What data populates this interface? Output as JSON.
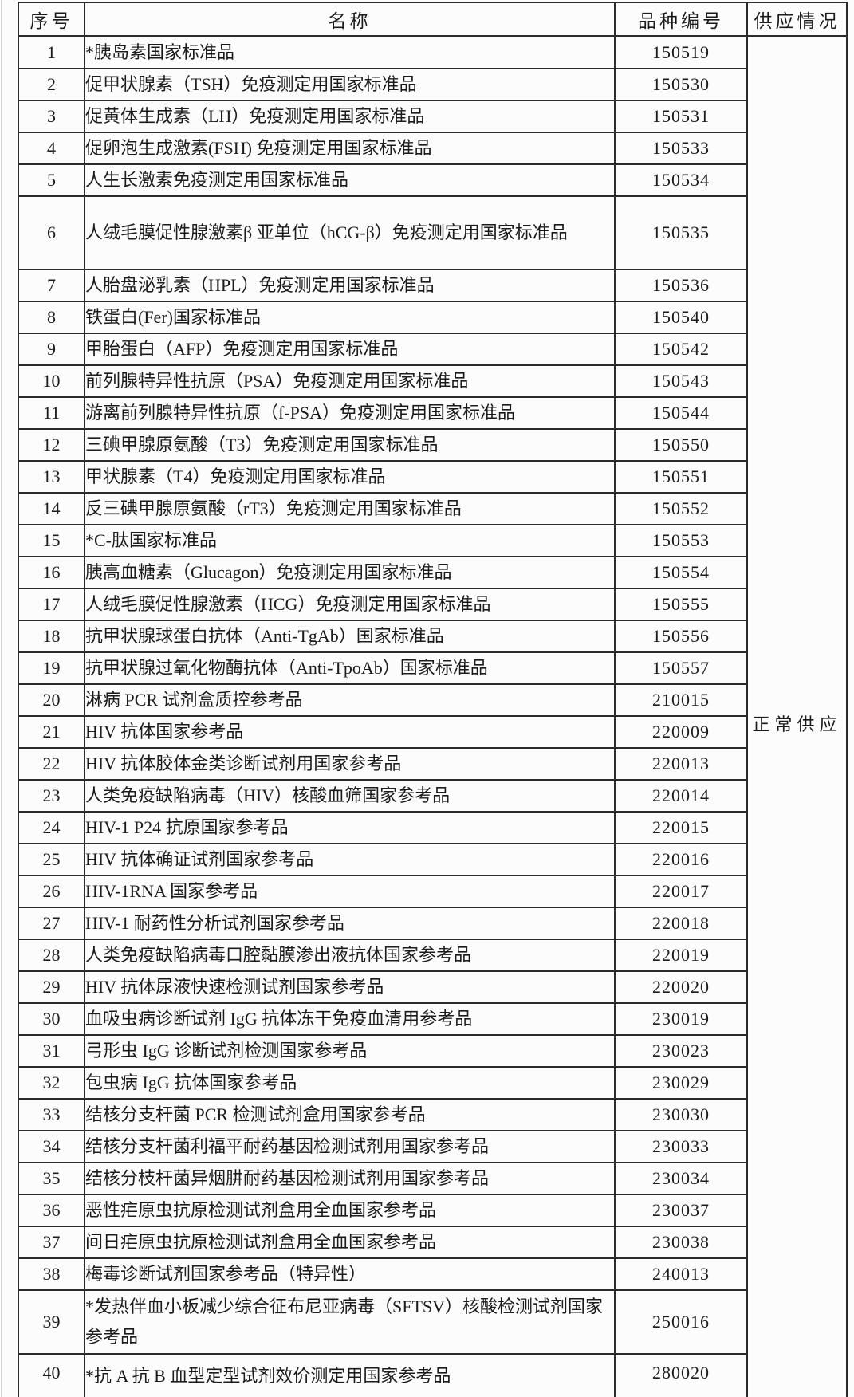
{
  "table": {
    "headers": {
      "index": "序号",
      "name": "名称",
      "code": "品种编号",
      "supply": "供应情况"
    },
    "supply_status": "正常供应",
    "rows": [
      {
        "index": "1",
        "name": "*胰岛素国家标准品",
        "code": "150519"
      },
      {
        "index": "2",
        "name": "促甲状腺素（TSH）免疫测定用国家标准品",
        "code": "150530"
      },
      {
        "index": "3",
        "name": "促黄体生成素（LH）免疫测定用国家标准品",
        "code": "150531"
      },
      {
        "index": "4",
        "name": "促卵泡生成激素(FSH) 免疫测定用国家标准品",
        "code": "150533"
      },
      {
        "index": "5",
        "name": "人生长激素免疫测定用国家标准品",
        "code": "150534"
      },
      {
        "index": "6",
        "name": "人绒毛膜促性腺激素β 亚单位（hCG-β）免疫测定用国家标准品",
        "code": "150535"
      },
      {
        "index": "7",
        "name": "人胎盘泌乳素（HPL）免疫测定用国家标准品",
        "code": "150536"
      },
      {
        "index": "8",
        "name": "铁蛋白(Fer)国家标准品",
        "code": "150540"
      },
      {
        "index": "9",
        "name": "甲胎蛋白（AFP）免疫测定用国家标准品",
        "code": "150542"
      },
      {
        "index": "10",
        "name": "前列腺特异性抗原（PSA）免疫测定用国家标准品",
        "code": "150543"
      },
      {
        "index": "11",
        "name": "游离前列腺特异性抗原（f-PSA）免疫测定用国家标准品",
        "code": "150544"
      },
      {
        "index": "12",
        "name": "三碘甲腺原氨酸（T3）免疫测定用国家标准品",
        "code": "150550"
      },
      {
        "index": "13",
        "name": "甲状腺素（T4）免疫测定用国家标准品",
        "code": "150551"
      },
      {
        "index": "14",
        "name": "反三碘甲腺原氨酸（rT3）免疫测定用国家标准品",
        "code": "150552"
      },
      {
        "index": "15",
        "name": "*C-肽国家标准品",
        "code": "150553"
      },
      {
        "index": "16",
        "name": "胰高血糖素（Glucagon）免疫测定用国家标准品",
        "code": "150554"
      },
      {
        "index": "17",
        "name": "人绒毛膜促性腺激素（HCG）免疫测定用国家标准品",
        "code": "150555"
      },
      {
        "index": "18",
        "name": "抗甲状腺球蛋白抗体（Anti-TgAb）国家标准品",
        "code": "150556"
      },
      {
        "index": "19",
        "name": "抗甲状腺过氧化物酶抗体（Anti-TpoAb）国家标准品",
        "code": "150557"
      },
      {
        "index": "20",
        "name": "淋病 PCR 试剂盒质控参考品",
        "code": "210015"
      },
      {
        "index": "21",
        "name": "HIV 抗体国家参考品",
        "code": "220009"
      },
      {
        "index": "22",
        "name": "HIV 抗体胶体金类诊断试剂用国家参考品",
        "code": "220013"
      },
      {
        "index": "23",
        "name": "人类免疫缺陷病毒（HIV）核酸血筛国家参考品",
        "code": "220014"
      },
      {
        "index": "24",
        "name": "HIV-1 P24 抗原国家参考品",
        "code": "220015"
      },
      {
        "index": "25",
        "name": "HIV 抗体确证试剂国家参考品",
        "code": "220016"
      },
      {
        "index": "26",
        "name": "HIV-1RNA 国家参考品",
        "code": "220017"
      },
      {
        "index": "27",
        "name": "HIV-1 耐药性分析试剂国家参考品",
        "code": "220018"
      },
      {
        "index": "28",
        "name": "人类免疫缺陷病毒口腔黏膜渗出液抗体国家参考品",
        "code": "220019"
      },
      {
        "index": "29",
        "name": "HIV 抗体尿液快速检测试剂国家参考品",
        "code": "220020"
      },
      {
        "index": "30",
        "name": "血吸虫病诊断试剂 IgG 抗体冻干免疫血清用参考品",
        "code": "230019"
      },
      {
        "index": "31",
        "name": "弓形虫 IgG 诊断试剂检测国家参考品",
        "code": "230023"
      },
      {
        "index": "32",
        "name": "包虫病 IgG 抗体国家参考品",
        "code": "230029"
      },
      {
        "index": "33",
        "name": "结核分支杆菌 PCR 检测试剂盒用国家参考品",
        "code": "230030"
      },
      {
        "index": "34",
        "name": "结核分支杆菌利福平耐药基因检测试剂用国家参考品",
        "code": "230033"
      },
      {
        "index": "35",
        "name": "结核分枝杆菌异烟肼耐药基因检测试剂用国家参考品",
        "code": "230034"
      },
      {
        "index": "36",
        "name": "恶性疟原虫抗原检测试剂盒用全血国家参考品",
        "code": "230037"
      },
      {
        "index": "37",
        "name": "间日疟原虫抗原检测试剂盒用全血国家参考品",
        "code": "230038"
      },
      {
        "index": "38",
        "name": "梅毒诊断试剂国家参考品（特异性）",
        "code": "240013"
      },
      {
        "index": "39",
        "name": "*发热伴血小板减少综合征布尼亚病毒（SFTSV）核酸检测试剂国家参考品",
        "code": "250016"
      },
      {
        "index": "40",
        "name": "*抗 A 抗 B 血型定型试剂效价测定用国家参考品",
        "code": "280020"
      }
    ]
  }
}
